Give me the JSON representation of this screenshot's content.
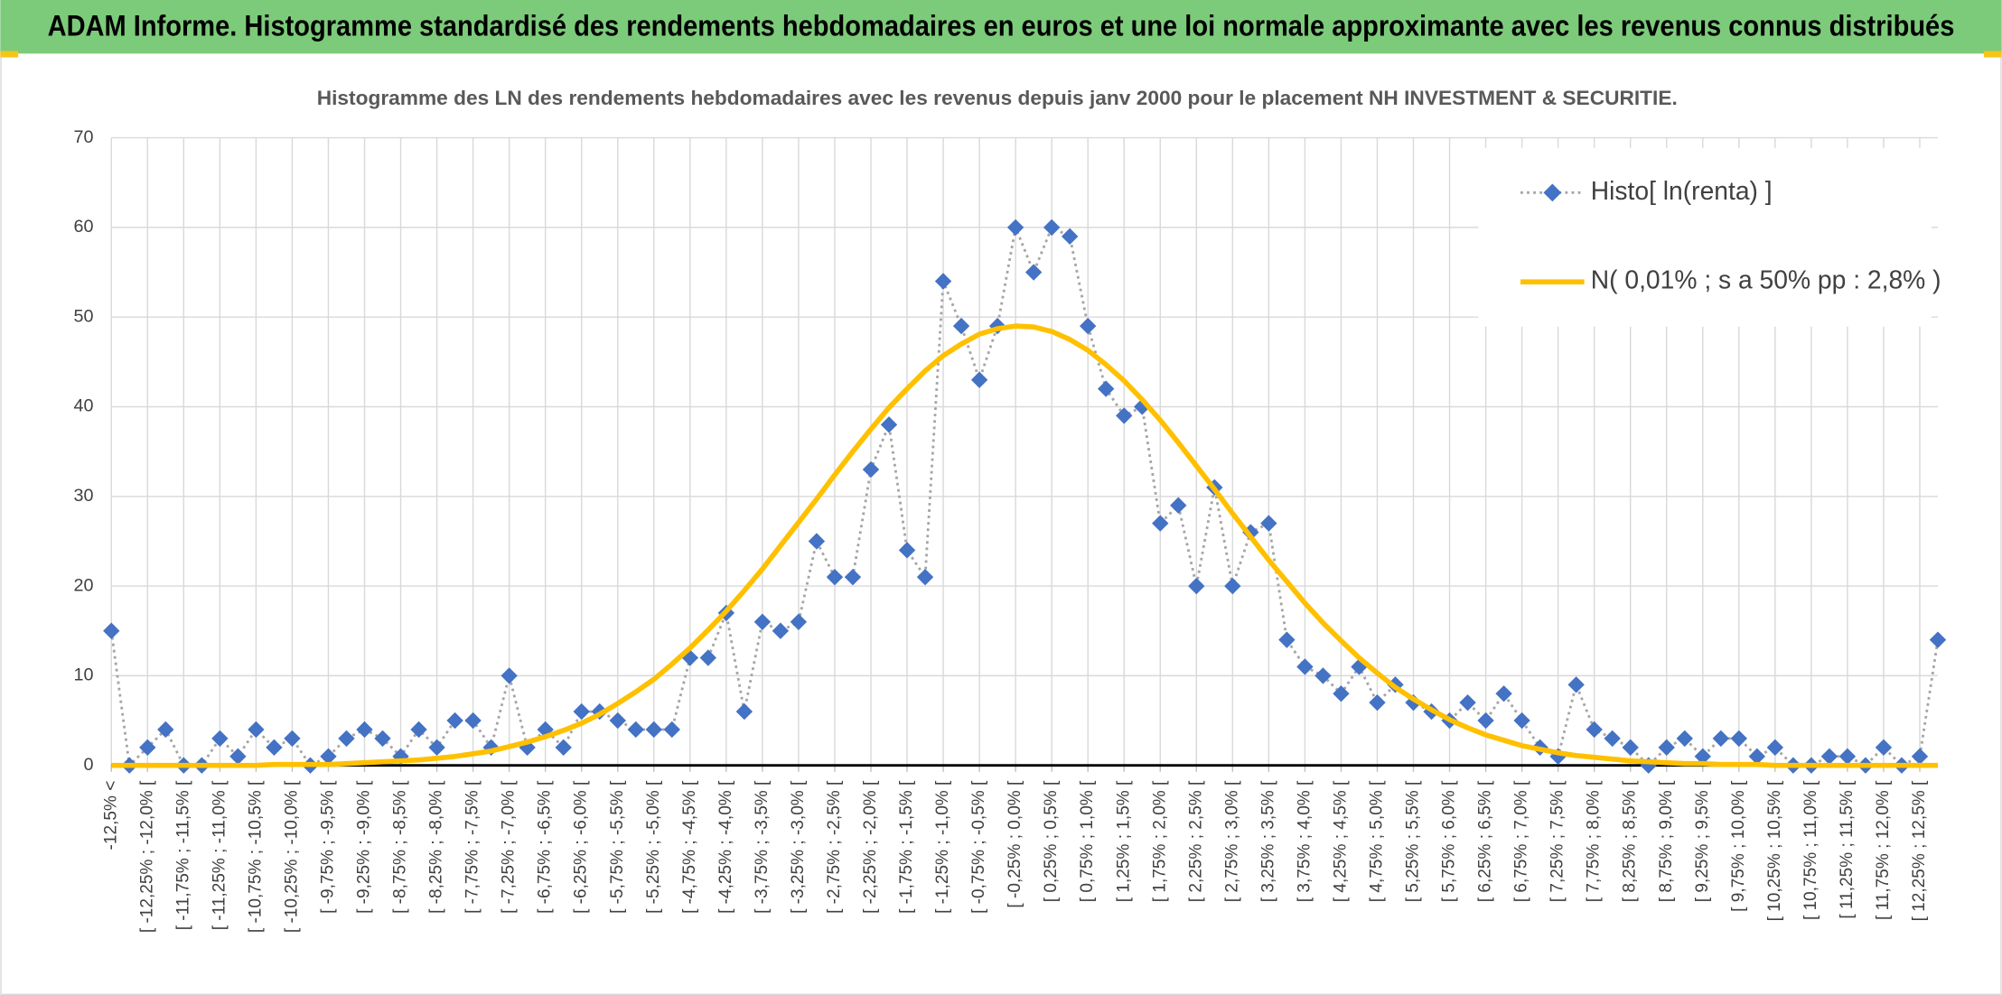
{
  "chart_data": {
    "type": "line",
    "title": "ADAM Informe. Histogramme standardisé des rendements hebdomadaires en euros et une loi normale approximante avec les revenus connus distribués",
    "subtitle": "Histogramme des LN des rendements hebdomadaires avec les revenus depuis janv 2000 pour le placement NH INVESTMENT & SECURITIE.",
    "categories": [
      "-12,5% <",
      null,
      "[ -12,25% ; -12,0% [",
      null,
      "[ -11,75% ; -11,5% [",
      null,
      "[ -11,25% ; -11,0% [",
      null,
      "[ -10,75% ; -10,5% [",
      null,
      "[ -10,25% ; -10,0% [",
      null,
      "[ -9,75% ; -9,5% [",
      null,
      "[ -9,25% ; -9,0% [",
      null,
      "[ -8,75% ; -8,5% [",
      null,
      "[ -8,25% ; -8,0% [",
      null,
      "[ -7,75% ; -7,5% [",
      null,
      "[ -7,25% ; -7,0% [",
      null,
      "[ -6,75% ; -6,5% [",
      null,
      "[ -6,25% ; -6,0% [",
      null,
      "[ -5,75% ; -5,5% [",
      null,
      "[ -5,25% ; -5,0% [",
      null,
      "[ -4,75% ; -4,5% [",
      null,
      "[ -4,25% ; -4,0% [",
      null,
      "[ -3,75% ; -3,5% [",
      null,
      "[ -3,25% ; -3,0% [",
      null,
      "[ -2,75% ; -2,5% [",
      null,
      "[ -2,25% ; -2,0% [",
      null,
      "[ -1,75% ; -1,5% [",
      null,
      "[ -1,25% ; -1,0% [",
      null,
      "[ -0,75% ; -0,5% [",
      null,
      "[ -0,25% ; 0,0% [",
      null,
      "[ 0,25% ; 0,5% [",
      null,
      "[ 0,75% ; 1,0% [",
      null,
      "[ 1,25% ; 1,5% [",
      null,
      "[ 1,75% ; 2,0% [",
      null,
      "[ 2,25% ; 2,5% [",
      null,
      "[ 2,75% ; 3,0% [",
      null,
      "[ 3,25% ; 3,5% [",
      null,
      "[ 3,75% ; 4,0% [",
      null,
      "[ 4,25% ; 4,5% [",
      null,
      "[ 4,75% ; 5,0% [",
      null,
      "[ 5,25% ; 5,5% [",
      null,
      "[ 5,75% ; 6,0% [",
      null,
      "[ 6,25% ; 6,5% [",
      null,
      "[ 6,75% ; 7,0% [",
      null,
      "[ 7,25% ; 7,5% [",
      null,
      "[ 7,75% ; 8,0% [",
      null,
      "[ 8,25% ; 8,5% [",
      null,
      "[ 8,75% ; 9,0% [",
      null,
      "[ 9,25% ; 9,5% [",
      null,
      "[ 9,75% ; 10,0% [",
      null,
      "[ 10,25% ; 10,5% [",
      null,
      "[ 10,75% ; 11,0% [",
      null,
      "[ 11,25% ; 11,5% [",
      null,
      "[ 11,75% ; 12,0% [",
      null,
      "[ 12,25% ; 12,5% [",
      null
    ],
    "series": [
      {
        "name": "Histo[ ln(renta) ]",
        "color": "#4472c4",
        "line_color": "#a5a5a5",
        "values": [
          15,
          0,
          2,
          4,
          0,
          0,
          3,
          1,
          4,
          2,
          3,
          0,
          1,
          3,
          4,
          3,
          1,
          4,
          2,
          5,
          5,
          2,
          10,
          2,
          4,
          2,
          6,
          6,
          5,
          4,
          4,
          4,
          12,
          12,
          17,
          6,
          16,
          15,
          16,
          25,
          21,
          21,
          33,
          38,
          24,
          21,
          54,
          49,
          43,
          49,
          60,
          55,
          60,
          59,
          49,
          42,
          39,
          40,
          27,
          29,
          20,
          31,
          20,
          26,
          27,
          14,
          11,
          10,
          8,
          11,
          7,
          9,
          7,
          6,
          5,
          7,
          5,
          8,
          5,
          2,
          1,
          9,
          4,
          3,
          2,
          0,
          2,
          3,
          1,
          3,
          3,
          1,
          2,
          0,
          0,
          1,
          1,
          0,
          2,
          0,
          1,
          14
        ]
      },
      {
        "name": "N( 0,01% ; s a 50% pp : 2,8% )",
        "color": "#ffc000",
        "values": [
          0,
          0,
          0,
          0,
          0,
          0,
          0,
          0,
          0,
          0.1,
          0.1,
          0.1,
          0.1,
          0.2,
          0.3,
          0.4,
          0.5,
          0.6,
          0.8,
          1.0,
          1.3,
          1.6,
          2.1,
          2.6,
          3.2,
          3.9,
          4.7,
          5.7,
          6.9,
          8.2,
          9.6,
          11.3,
          13.1,
          15.1,
          17.2,
          19.5,
          21.9,
          24.5,
          27.1,
          29.7,
          32.4,
          35.0,
          37.5,
          39.9,
          42.0,
          44.0,
          45.7,
          47.0,
          48.1,
          48.7,
          49.0,
          48.9,
          48.4,
          47.5,
          46.3,
          44.7,
          42.9,
          40.8,
          38.5,
          36.0,
          33.4,
          30.8,
          28.1,
          25.5,
          22.9,
          20.5,
          18.1,
          15.9,
          13.9,
          12.0,
          10.3,
          8.7,
          7.4,
          6.2,
          5.1,
          4.2,
          3.4,
          2.8,
          2.2,
          1.8,
          1.4,
          1.1,
          0.9,
          0.7,
          0.5,
          0.4,
          0.3,
          0.2,
          0.2,
          0.1,
          0.1,
          0.1,
          0,
          0,
          0,
          0,
          0,
          0,
          0,
          0,
          0,
          0
        ]
      }
    ],
    "ylim": [
      0,
      70
    ],
    "yticks": [
      0,
      10,
      20,
      30,
      40,
      50,
      60,
      70
    ],
    "grid": true,
    "legend": "upper right"
  }
}
